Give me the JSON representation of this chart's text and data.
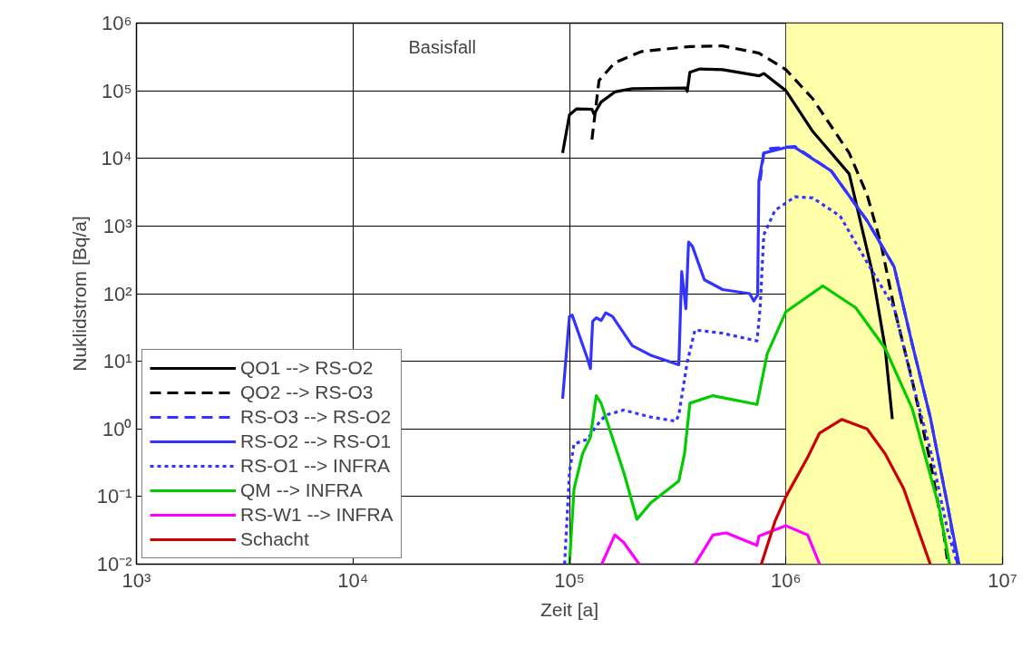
{
  "chart_data": {
    "type": "line",
    "xlabel": "Zeit [a]",
    "ylabel": "Nuklidstrom [Bq/a]",
    "log": "xy",
    "grid": true,
    "legend": "bottom left",
    "annotations": [
      "Basisfall"
    ],
    "xlim": [
      1000,
      10000000
    ],
    "ylim": [
      0.01,
      1000000
    ],
    "xticks": [
      {
        "value": 1000,
        "label": "10³"
      },
      {
        "value": 10000,
        "label": "10⁴"
      },
      {
        "value": 100000,
        "label": "10⁵"
      },
      {
        "value": 1000000,
        "label": "10⁶"
      },
      {
        "value": 10000000,
        "label": "10⁷"
      }
    ],
    "yticks": [
      {
        "value": 0.01,
        "label": "10⁻²"
      },
      {
        "value": 0.1,
        "label": "10⁻¹"
      },
      {
        "value": 1,
        "label": "10⁰"
      },
      {
        "value": 10,
        "label": "10¹"
      },
      {
        "value": 100,
        "label": "10²"
      },
      {
        "value": 1000,
        "label": "10³"
      },
      {
        "value": 10000,
        "label": "10⁴"
      },
      {
        "value": 100000,
        "label": "10⁵"
      },
      {
        "value": 1000000,
        "label": "10⁶"
      }
    ],
    "bands": [
      {
        "axis": "x",
        "from": 1000000,
        "to": 10000000,
        "color": "#ffffaa"
      }
    ],
    "series": [
      {
        "name": "QO1 --> RS-O2",
        "color": "#000000",
        "line_style": "solid",
        "x": [
          93000,
          100000,
          108000,
          127000,
          130000,
          140000,
          162000,
          195000,
          345000,
          350000,
          360000,
          400000,
          510000,
          750000,
          790000,
          1000000,
          1330000,
          1960000,
          2500000,
          2870000,
          3100000
        ],
        "values": [
          12000,
          44000,
          54000,
          53000,
          45000,
          68000,
          96000,
          107000,
          110000,
          98000,
          187000,
          210000,
          205000,
          166000,
          180000,
          100000,
          25000,
          5900,
          214,
          16,
          1.4
        ]
      },
      {
        "name": "QO2 --> RS-O3",
        "color": "#000000",
        "line_style": "dashed",
        "x": [
          127000,
          137000,
          162000,
          215000,
          360000,
          510000,
          750000,
          1000000,
          1330000,
          1960000,
          2370000,
          2750000,
          3160000,
          3830000,
          4640000,
          5370000,
          5600000
        ],
        "values": [
          19000,
          142000,
          260000,
          380000,
          450000,
          460000,
          360000,
          205000,
          76000,
          12000,
          2900,
          540,
          62,
          5.2,
          0.33,
          0.027,
          0.01
        ]
      },
      {
        "name": "RS-O3 --> RS-O2",
        "color": "#3333ff",
        "line_style": "dashed",
        "x": [
          760000,
          790000,
          850000,
          1100000,
          1620000,
          2370000,
          3160000,
          3830000,
          4640000,
          5600000,
          6200000
        ],
        "values": [
          4700,
          12000,
          14000,
          15000,
          6500,
          1200,
          250,
          18,
          1.5,
          0.07,
          0.01
        ]
      },
      {
        "name": "RS-O2 --> RS-O1",
        "color": "#3333ff",
        "line_style": "solid",
        "x": [
          93000,
          100000,
          103000,
          121000,
          125000,
          128000,
          133000,
          140000,
          147000,
          158000,
          195000,
          237000,
          320000,
          330000,
          345000,
          355000,
          370000,
          420000,
          510000,
          680000,
          710000,
          740000,
          750000,
          790000,
          1000000,
          1100000,
          1620000,
          2370000,
          3160000,
          3830000,
          4640000,
          5600000,
          6300000
        ],
        "values": [
          2.8,
          46,
          48,
          11,
          7.8,
          39,
          44,
          40,
          52,
          46,
          17,
          12.3,
          8.9,
          213,
          60,
          580,
          500,
          160,
          115,
          100,
          78,
          95,
          4700,
          12000,
          14500,
          14500,
          6500,
          1200,
          250,
          18,
          1.5,
          0.07,
          0.01
        ]
      },
      {
        "name": "RS-O1 --> INFRA",
        "color": "#3333ff",
        "line_style": "dotted",
        "x": [
          95000,
          100000,
          105000,
          121000,
          133000,
          147000,
          178000,
          237000,
          310000,
          320000,
          350000,
          380000,
          510000,
          735000,
          760000,
          790000,
          890000,
          1100000,
          1330000,
          1780000,
          2370000,
          3160000,
          3830000,
          4640000,
          5600000,
          6200000
        ],
        "values": [
          0.01,
          0.23,
          0.6,
          0.7,
          1.1,
          1.6,
          1.9,
          1.5,
          1.3,
          1.6,
          9.7,
          29,
          26,
          20,
          62,
          740,
          1700,
          2700,
          2600,
          1400,
          290,
          62,
          5,
          0.5,
          0.03,
          0.01
        ]
      },
      {
        "name": "QM --> INFRA",
        "color": "#00cc00",
        "line_style": "solid",
        "x": [
          100000,
          105000,
          115000,
          125000,
          133000,
          140000,
          178000,
          205000,
          237000,
          320000,
          340000,
          360000,
          460000,
          735000,
          820000,
          1000000,
          1480000,
          2100000,
          2870000,
          3830000,
          5100000,
          5700000
        ],
        "values": [
          0.01,
          0.13,
          0.43,
          0.75,
          3.1,
          2.4,
          0.23,
          0.046,
          0.08,
          0.17,
          0.43,
          2.4,
          3.1,
          2.3,
          13,
          54,
          130,
          62,
          15.6,
          2,
          0.069,
          0.01
        ]
      },
      {
        "name": "RS-W1 --> INFRA",
        "color": "#ff00ff",
        "line_style": "solid",
        "x": [
          141000,
          162000,
          178000,
          210000,
          250000,
          380000,
          460000,
          530000,
          735000,
          750000,
          1000000,
          1260000,
          1430000
        ],
        "values": [
          0.01,
          0.027,
          0.021,
          0.01,
          null,
          0.01,
          0.027,
          0.029,
          0.019,
          0.026,
          0.037,
          0.027,
          0.01
        ]
      },
      {
        "name": "Schacht",
        "color": "#cc0000",
        "line_style": "solid",
        "x": [
          770000,
          890000,
          1000000,
          1260000,
          1430000,
          1810000,
          2370000,
          2870000,
          3500000,
          4640000
        ],
        "values": [
          0.01,
          0.043,
          0.1,
          0.38,
          0.87,
          1.38,
          1.0,
          0.43,
          0.13,
          0.01
        ]
      }
    ]
  }
}
